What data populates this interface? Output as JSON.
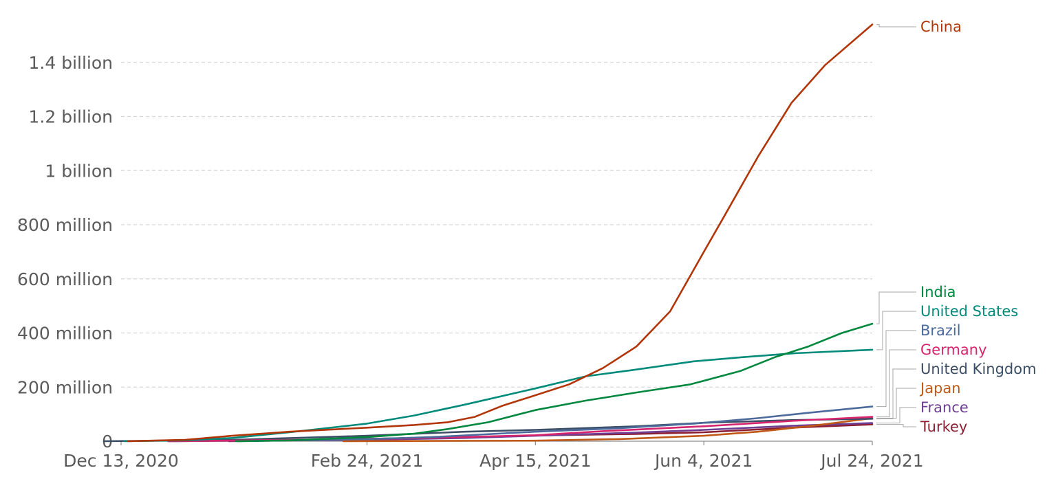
{
  "chart_data": {
    "type": "line",
    "title": "",
    "xlabel": "",
    "ylabel": "",
    "x_range": [
      "2020-12-13",
      "2021-07-24"
    ],
    "ylim": [
      0,
      1600000000
    ],
    "yticks": [
      {
        "value": 0,
        "label": "0"
      },
      {
        "value": 200000000,
        "label": "200 million"
      },
      {
        "value": 400000000,
        "label": "400 million"
      },
      {
        "value": 600000000,
        "label": "600 million"
      },
      {
        "value": 800000000,
        "label": "800 million"
      },
      {
        "value": 1000000000,
        "label": "1 billion"
      },
      {
        "value": 1200000000,
        "label": "1.2 billion"
      },
      {
        "value": 1400000000,
        "label": "1.4 billion"
      }
    ],
    "xticks": [
      {
        "date": "2020-12-13",
        "label": "Dec 13, 2020"
      },
      {
        "date": "2021-02-24",
        "label": "Feb 24, 2021"
      },
      {
        "date": "2021-04-15",
        "label": "Apr 15, 2021"
      },
      {
        "date": "2021-06-04",
        "label": "Jun 4, 2021"
      },
      {
        "date": "2021-07-24",
        "label": "Jul 24, 2021"
      }
    ],
    "grid": true,
    "legend": "right, labels at line ends",
    "series": [
      {
        "name": "China",
        "color": "#b13507",
        "points": [
          [
            "2020-12-15",
            0
          ],
          [
            "2021-01-01",
            5000000
          ],
          [
            "2021-01-15",
            20000000
          ],
          [
            "2021-02-01",
            35000000
          ],
          [
            "2021-02-24",
            50000000
          ],
          [
            "2021-03-10",
            60000000
          ],
          [
            "2021-03-20",
            70000000
          ],
          [
            "2021-03-28",
            90000000
          ],
          [
            "2021-04-05",
            130000000
          ],
          [
            "2021-04-15",
            170000000
          ],
          [
            "2021-04-25",
            210000000
          ],
          [
            "2021-05-05",
            270000000
          ],
          [
            "2021-05-15",
            350000000
          ],
          [
            "2021-05-25",
            480000000
          ],
          [
            "2021-06-04",
            700000000
          ],
          [
            "2021-06-10",
            830000000
          ],
          [
            "2021-06-20",
            1050000000
          ],
          [
            "2021-06-30",
            1250000000
          ],
          [
            "2021-07-10",
            1390000000
          ],
          [
            "2021-07-24",
            1540000000
          ]
        ]
      },
      {
        "name": "India",
        "color": "#00873e",
        "points": [
          [
            "2021-01-16",
            0
          ],
          [
            "2021-02-01",
            3000000
          ],
          [
            "2021-02-24",
            15000000
          ],
          [
            "2021-03-10",
            28000000
          ],
          [
            "2021-03-20",
            45000000
          ],
          [
            "2021-04-01",
            70000000
          ],
          [
            "2021-04-15",
            115000000
          ],
          [
            "2021-04-30",
            150000000
          ],
          [
            "2021-05-15",
            180000000
          ],
          [
            "2021-05-31",
            210000000
          ],
          [
            "2021-06-15",
            260000000
          ],
          [
            "2021-06-25",
            310000000
          ],
          [
            "2021-07-05",
            350000000
          ],
          [
            "2021-07-15",
            400000000
          ],
          [
            "2021-07-24",
            434000000
          ]
        ]
      },
      {
        "name": "United States",
        "color": "#008a7a",
        "points": [
          [
            "2020-12-14",
            0
          ],
          [
            "2021-01-01",
            3000000
          ],
          [
            "2021-01-15",
            12000000
          ],
          [
            "2021-02-01",
            33000000
          ],
          [
            "2021-02-24",
            65000000
          ],
          [
            "2021-03-10",
            95000000
          ],
          [
            "2021-03-25",
            135000000
          ],
          [
            "2021-04-15",
            195000000
          ],
          [
            "2021-04-30",
            240000000
          ],
          [
            "2021-05-15",
            265000000
          ],
          [
            "2021-06-01",
            295000000
          ],
          [
            "2021-06-15",
            310000000
          ],
          [
            "2021-07-01",
            325000000
          ],
          [
            "2021-07-24",
            338000000
          ]
        ]
      },
      {
        "name": "Brazil",
        "color": "#4c6a9c",
        "points": [
          [
            "2021-01-17",
            0
          ],
          [
            "2021-02-24",
            8000000
          ],
          [
            "2021-03-15",
            15000000
          ],
          [
            "2021-04-15",
            35000000
          ],
          [
            "2021-05-10",
            48000000
          ],
          [
            "2021-06-01",
            65000000
          ],
          [
            "2021-06-20",
            85000000
          ],
          [
            "2021-07-05",
            105000000
          ],
          [
            "2021-07-24",
            128000000
          ]
        ]
      },
      {
        "name": "Germany",
        "color": "#d7246e",
        "points": [
          [
            "2020-12-27",
            0
          ],
          [
            "2021-02-24",
            8000000
          ],
          [
            "2021-03-20",
            14000000
          ],
          [
            "2021-04-15",
            22000000
          ],
          [
            "2021-05-05",
            37000000
          ],
          [
            "2021-06-04",
            55000000
          ],
          [
            "2021-06-30",
            75000000
          ],
          [
            "2021-07-24",
            90000000
          ]
        ]
      },
      {
        "name": "United Kingdom",
        "color": "#3c4e66",
        "points": [
          [
            "2020-12-08",
            0
          ],
          [
            "2021-01-15",
            5000000
          ],
          [
            "2021-02-24",
            20000000
          ],
          [
            "2021-03-25",
            35000000
          ],
          [
            "2021-04-15",
            42000000
          ],
          [
            "2021-05-15",
            55000000
          ],
          [
            "2021-06-04",
            68000000
          ],
          [
            "2021-06-30",
            78000000
          ],
          [
            "2021-07-24",
            83000000
          ]
        ]
      },
      {
        "name": "Japan",
        "color": "#c05917",
        "points": [
          [
            "2021-02-17",
            0
          ],
          [
            "2021-04-15",
            2000000
          ],
          [
            "2021-05-10",
            8000000
          ],
          [
            "2021-06-04",
            20000000
          ],
          [
            "2021-06-20",
            35000000
          ],
          [
            "2021-07-05",
            55000000
          ],
          [
            "2021-07-24",
            85000000
          ]
        ]
      },
      {
        "name": "France",
        "color": "#6d3e91",
        "points": [
          [
            "2020-12-27",
            0
          ],
          [
            "2021-02-24",
            5000000
          ],
          [
            "2021-03-25",
            12000000
          ],
          [
            "2021-04-15",
            20000000
          ],
          [
            "2021-05-15",
            32000000
          ],
          [
            "2021-06-04",
            42000000
          ],
          [
            "2021-06-30",
            57000000
          ],
          [
            "2021-07-24",
            67000000
          ]
        ]
      },
      {
        "name": "Turkey",
        "color": "#8c1f33",
        "points": [
          [
            "2021-01-14",
            0
          ],
          [
            "2021-02-24",
            9000000
          ],
          [
            "2021-03-25",
            15000000
          ],
          [
            "2021-04-15",
            21000000
          ],
          [
            "2021-05-15",
            27000000
          ],
          [
            "2021-06-04",
            33000000
          ],
          [
            "2021-06-30",
            50000000
          ],
          [
            "2021-07-24",
            62000000
          ]
        ]
      }
    ]
  }
}
